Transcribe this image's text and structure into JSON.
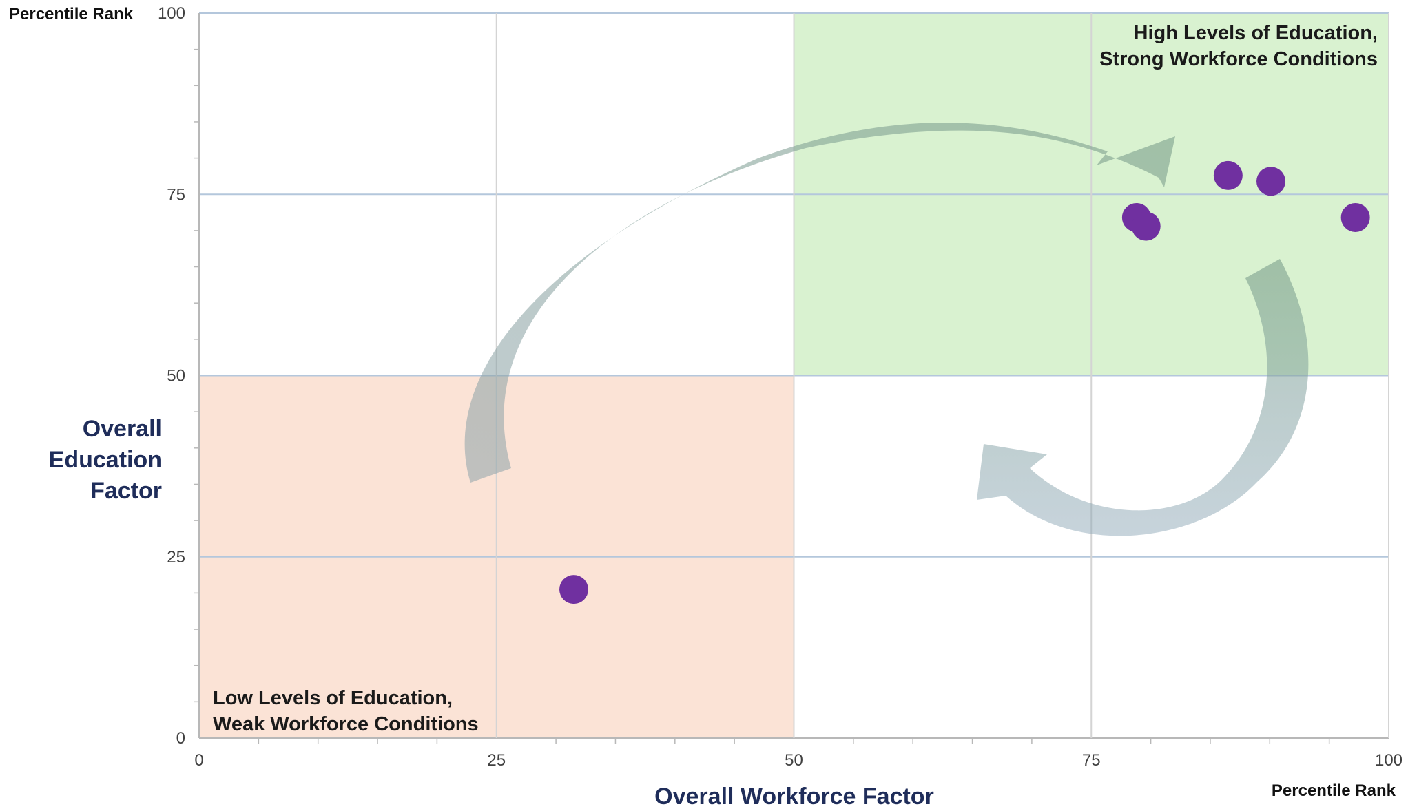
{
  "chart_data": {
    "type": "scatter",
    "title": "",
    "xlabel": "Overall Workforce Factor",
    "ylabel_lines": [
      "Overall",
      "Education",
      "Factor"
    ],
    "x_unit_label": "Percentile Rank",
    "y_unit_label": "Percentile Rank",
    "xlim": [
      0,
      100
    ],
    "ylim": [
      0,
      100
    ],
    "x_ticks": [
      "0",
      "25",
      "50",
      "75",
      "100"
    ],
    "y_ticks": [
      "0",
      "25",
      "50",
      "75",
      "100"
    ],
    "grid": true,
    "points": [
      {
        "x": 31.5,
        "y": 20.5
      },
      {
        "x": 78.8,
        "y": 71.8
      },
      {
        "x": 79.6,
        "y": 70.6
      },
      {
        "x": 86.5,
        "y": 77.6
      },
      {
        "x": 90.1,
        "y": 76.8
      },
      {
        "x": 97.2,
        "y": 71.8
      }
    ],
    "point_color": "#7030a0",
    "regions": [
      {
        "label_lines": [
          "High Levels of Education,",
          "Strong Workforce Conditions"
        ],
        "x_range": [
          50,
          100
        ],
        "y_range": [
          50,
          100
        ],
        "color": "#d9f2d0",
        "label_position": "top-right"
      },
      {
        "label_lines": [
          "Low Levels of Education,",
          "Weak Workforce Conditions"
        ],
        "x_range": [
          0,
          50
        ],
        "y_range": [
          0,
          50
        ],
        "color": "#fbe3d6",
        "label_position": "bottom-left"
      }
    ],
    "arrows": [
      {
        "from": "low-left region",
        "to": "high-right region",
        "color": "#8aa0ad"
      },
      {
        "from": "high-right region",
        "to": "lower-right area",
        "color": "#8aa0ad"
      }
    ]
  }
}
